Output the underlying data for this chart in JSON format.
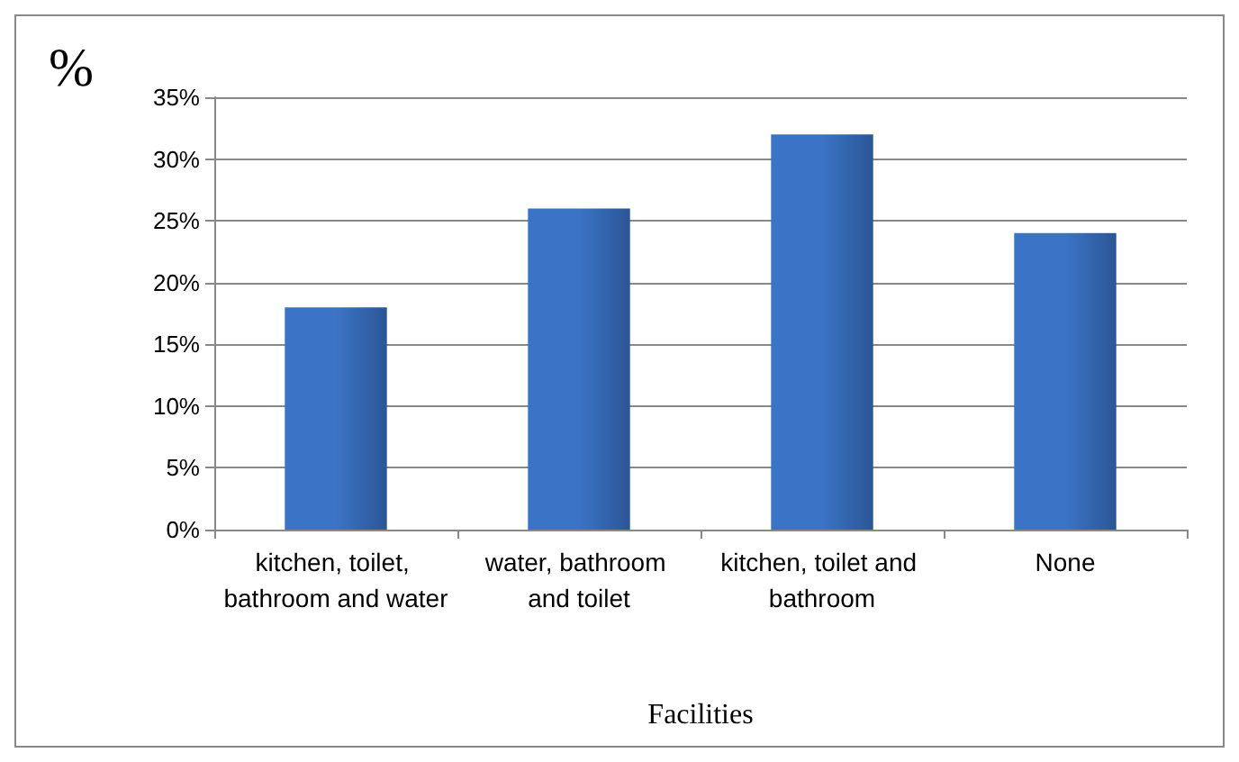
{
  "chart_data": {
    "type": "bar",
    "ylabel": "%",
    "xlabel": "Facilities",
    "categories": [
      "kitchen, toilet, bathroom and water",
      "water, bathroom and toilet",
      "kitchen, toilet and bathroom",
      "None"
    ],
    "values": [
      18,
      26,
      32,
      24
    ],
    "color": "#3b74c6",
    "ylim": [
      0,
      35
    ],
    "yticks": [
      {
        "value": 0,
        "label": "0%"
      },
      {
        "value": 5,
        "label": "5%"
      },
      {
        "value": 10,
        "label": "10%"
      },
      {
        "value": 15,
        "label": "15%"
      },
      {
        "value": 20,
        "label": "20%"
      },
      {
        "value": 25,
        "label": "25%"
      },
      {
        "value": 30,
        "label": "30%"
      },
      {
        "value": 35,
        "label": "35%"
      }
    ],
    "grid": "y"
  }
}
